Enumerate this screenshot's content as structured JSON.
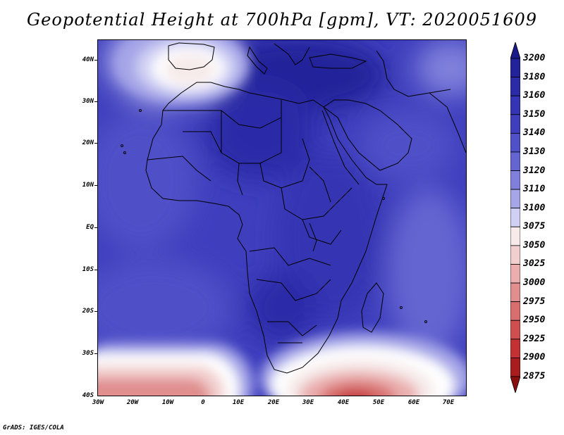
{
  "title": "Geopotential Height at 700hPa [gpm], VT: 2020051609",
  "credit": "GrADS: IGES/COLA",
  "y_axis_labels": [
    "40N",
    "30N",
    "20N",
    "10N",
    "EQ",
    "10S",
    "20S",
    "30S",
    "40S"
  ],
  "x_axis_labels": [
    "30W",
    "20W",
    "10W",
    "0",
    "10E",
    "20E",
    "30E",
    "40E",
    "50E",
    "60E",
    "70E"
  ],
  "colorbar": {
    "levels": [
      "3200",
      "3180",
      "3160",
      "3150",
      "3140",
      "3130",
      "3120",
      "3110",
      "3100",
      "3075",
      "3050",
      "3025",
      "3000",
      "2975",
      "2950",
      "2925",
      "2900",
      "2875"
    ],
    "colors": [
      "#1a1a8a",
      "#22229a",
      "#2b2ba8",
      "#3434b4",
      "#3f3fbe",
      "#5050c8",
      "#6565d2",
      "#8080dc",
      "#a5a5e8",
      "#d0d0f4",
      "#f6eaea",
      "#f2cfcf",
      "#eaaeae",
      "#e08e8e",
      "#d86e6e",
      "#cf4f4f",
      "#c23232",
      "#a81d1d",
      "#8a1010"
    ]
  }
}
